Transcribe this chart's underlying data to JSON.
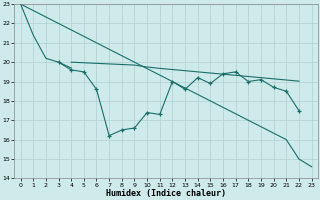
{
  "title": "",
  "xlabel": "Humidex (Indice chaleur)",
  "background_color": "#ceeaea",
  "grid_color": "#afd0d0",
  "line_color": "#1a6e6a",
  "xlim": [
    -0.5,
    23.5
  ],
  "ylim": [
    14,
    23
  ],
  "yticks": [
    14,
    15,
    16,
    17,
    18,
    19,
    20,
    21,
    22,
    23
  ],
  "xticks": [
    0,
    1,
    2,
    3,
    4,
    5,
    6,
    7,
    8,
    9,
    10,
    11,
    12,
    13,
    14,
    15,
    16,
    17,
    18,
    19,
    20,
    21,
    22,
    23
  ],
  "line1_x": [
    0,
    1,
    2,
    3,
    4
  ],
  "line1_y": [
    23.0,
    21.4,
    20.2,
    20.0,
    19.7
  ],
  "line2_x": [
    0,
    21,
    22,
    23
  ],
  "line2_y": [
    23.0,
    16.0,
    15.0,
    14.6
  ],
  "line3_x": [
    3,
    4,
    5,
    6,
    7,
    8,
    9,
    10,
    11,
    12,
    13,
    14,
    15,
    16,
    17,
    18,
    19,
    20,
    21,
    22
  ],
  "line3_y": [
    20.0,
    19.6,
    19.5,
    18.6,
    16.2,
    16.5,
    16.6,
    17.4,
    17.3,
    19.0,
    18.6,
    19.2,
    18.9,
    19.4,
    19.5,
    19.0,
    19.1,
    18.7,
    18.5,
    17.5
  ],
  "line4_x": [
    4,
    5,
    6,
    7,
    8,
    9,
    10,
    11,
    12,
    13,
    14,
    15,
    16,
    17,
    18,
    19,
    20,
    21,
    22
  ],
  "line4_y": [
    20.0,
    19.97,
    19.94,
    19.91,
    19.88,
    19.85,
    19.75,
    19.68,
    19.62,
    19.56,
    19.5,
    19.44,
    19.38,
    19.32,
    19.26,
    19.2,
    19.14,
    19.08,
    19.02
  ]
}
